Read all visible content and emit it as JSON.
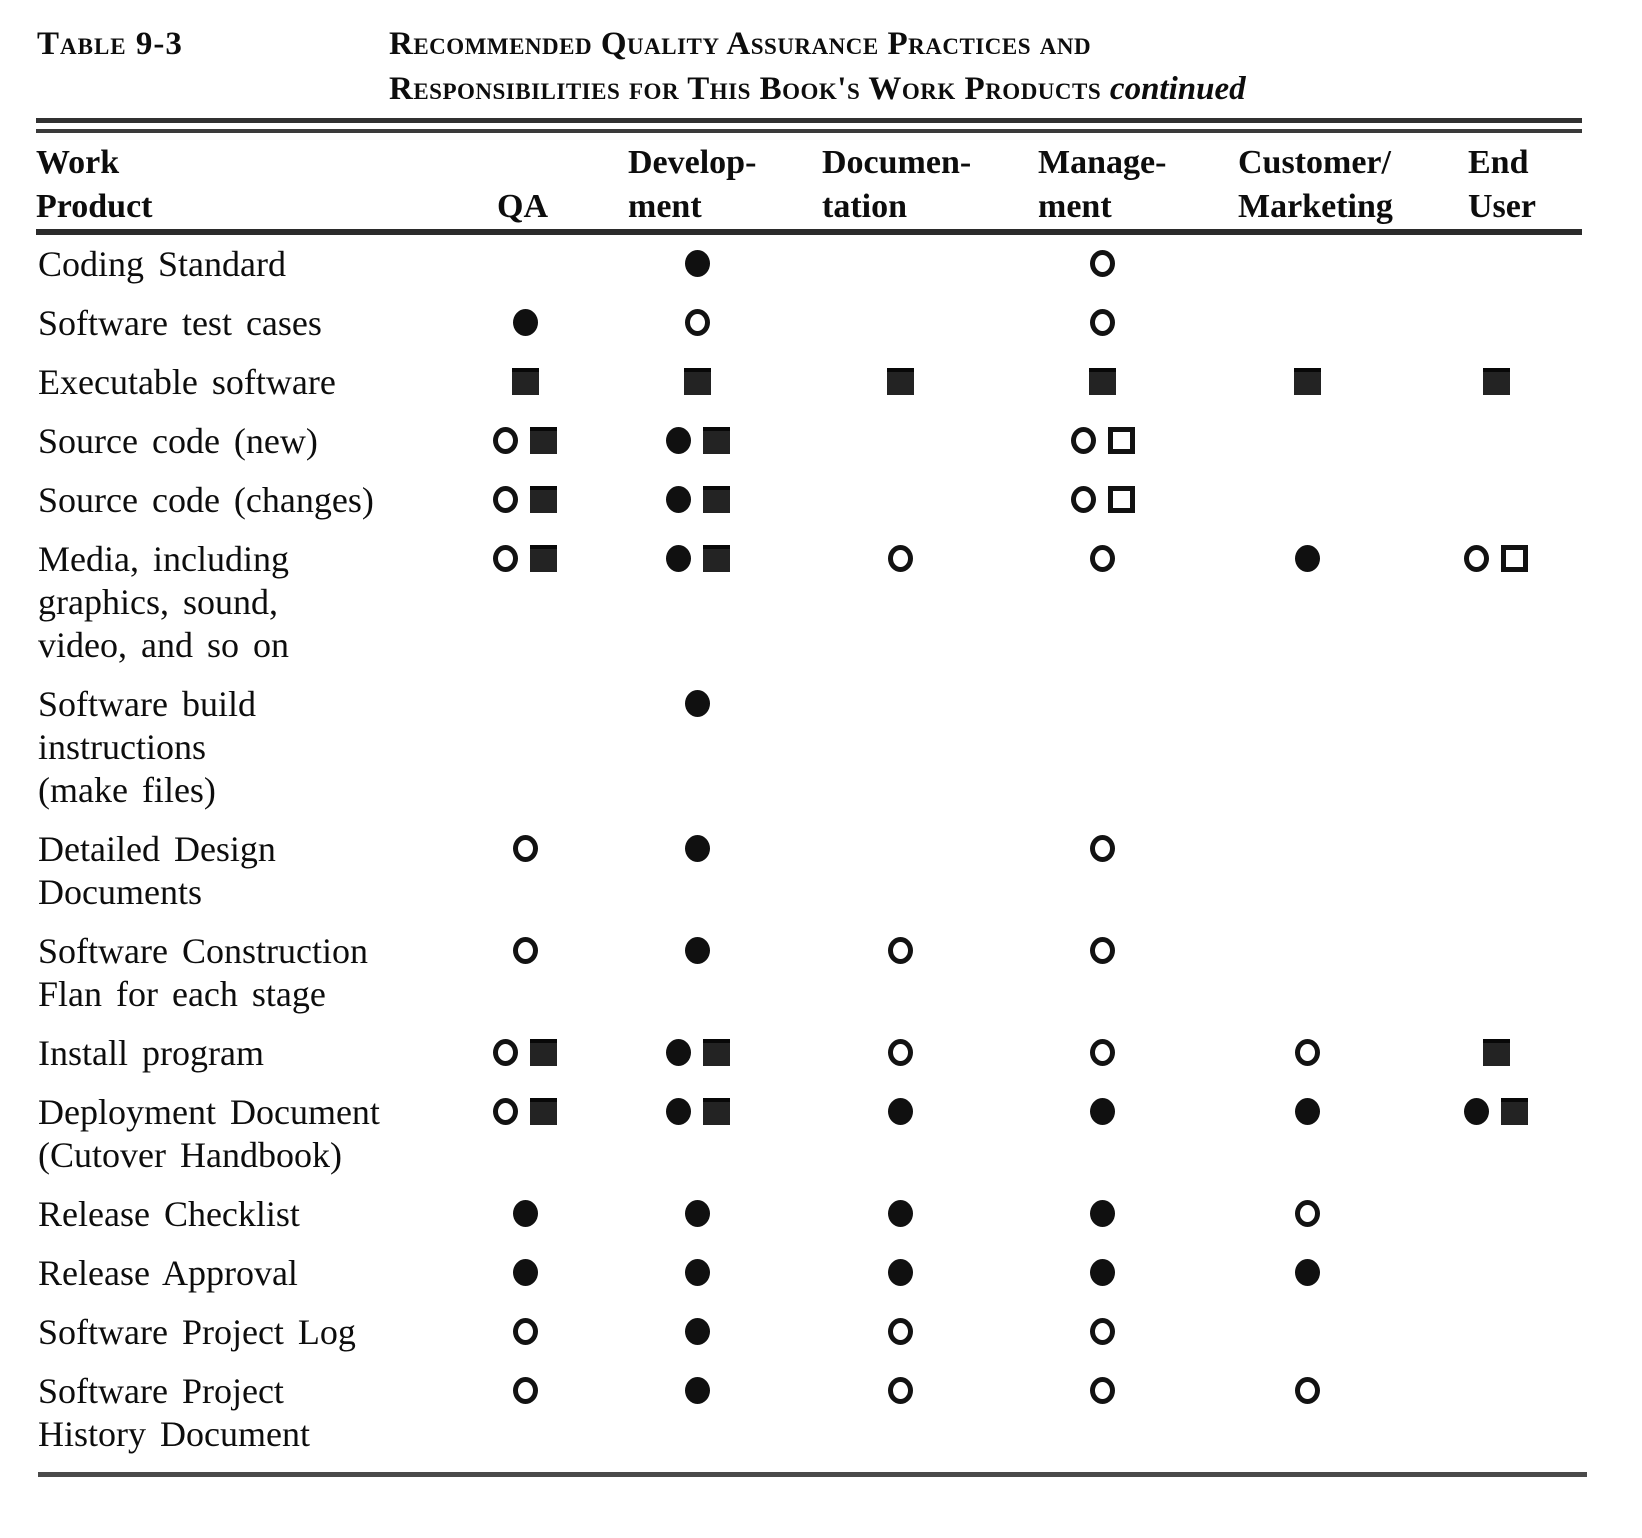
{
  "page": {
    "table_label": "Table 9-3",
    "title_line1": "Recommended Quality Assurance Practices and",
    "title_line2": "Responsibilities for This Book's Work Products",
    "title_continued": "continued"
  },
  "table": {
    "columns": [
      {
        "id": "work_product",
        "line1": "Work",
        "line2": "Product"
      },
      {
        "id": "qa",
        "line1": "",
        "line2": "QA"
      },
      {
        "id": "development",
        "line1": "Develop-",
        "line2": "ment"
      },
      {
        "id": "documentation",
        "line1": "Documen-",
        "line2": "tation"
      },
      {
        "id": "management",
        "line1": "Manage-",
        "line2": "ment"
      },
      {
        "id": "customer_marketing",
        "line1": "Customer/",
        "line2": "Marketing"
      },
      {
        "id": "end_user",
        "line1": "End",
        "line2": "User"
      }
    ],
    "column_order": [
      "qa",
      "development",
      "documentation",
      "management",
      "customer_marketing",
      "end_user"
    ],
    "symbol_classes": {
      "filled_circle": "fc",
      "open_circle": "oc",
      "filled_square": "fs",
      "open_square": "os"
    },
    "symbol_glyphs": {
      "filled_circle": "●",
      "open_circle": "○",
      "filled_square": "■",
      "open_square": "□"
    },
    "rows": [
      {
        "label_lines": [
          "Coding Standard"
        ],
        "cells": {
          "qa": [],
          "development": [
            "filled_circle"
          ],
          "documentation": [],
          "management": [
            "open_circle"
          ],
          "customer_marketing": [],
          "end_user": []
        }
      },
      {
        "label_lines": [
          "Software test cases"
        ],
        "cells": {
          "qa": [
            "filled_circle"
          ],
          "development": [
            "open_circle"
          ],
          "documentation": [],
          "management": [
            "open_circle"
          ],
          "customer_marketing": [],
          "end_user": []
        }
      },
      {
        "label_lines": [
          "Executable software"
        ],
        "cells": {
          "qa": [
            "filled_square"
          ],
          "development": [
            "filled_square"
          ],
          "documentation": [
            "filled_square"
          ],
          "management": [
            "filled_square"
          ],
          "customer_marketing": [
            "filled_square"
          ],
          "end_user": [
            "filled_square"
          ]
        }
      },
      {
        "label_lines": [
          "Source code (new)"
        ],
        "cells": {
          "qa": [
            "open_circle",
            "filled_square"
          ],
          "development": [
            "filled_circle",
            "filled_square"
          ],
          "documentation": [],
          "management": [
            "open_circle",
            "open_square"
          ],
          "customer_marketing": [],
          "end_user": []
        }
      },
      {
        "label_lines": [
          "Source code (changes)"
        ],
        "cells": {
          "qa": [
            "open_circle",
            "filled_square"
          ],
          "development": [
            "filled_circle",
            "filled_square"
          ],
          "documentation": [],
          "management": [
            "open_circle",
            "open_square"
          ],
          "customer_marketing": [],
          "end_user": []
        }
      },
      {
        "label_lines": [
          "Media, including",
          "graphics, sound,",
          "video, and so on"
        ],
        "cells": {
          "qa": [
            "open_circle",
            "filled_square"
          ],
          "development": [
            "filled_circle",
            "filled_square"
          ],
          "documentation": [
            "open_circle"
          ],
          "management": [
            "open_circle"
          ],
          "customer_marketing": [
            "filled_circle"
          ],
          "end_user": [
            "open_circle",
            "open_square"
          ]
        }
      },
      {
        "label_lines": [
          "Software build",
          "instructions",
          "(make files)"
        ],
        "cells": {
          "qa": [],
          "development": [
            "filled_circle"
          ],
          "documentation": [],
          "management": [],
          "customer_marketing": [],
          "end_user": []
        }
      },
      {
        "label_lines": [
          "Detailed Design",
          "Documents"
        ],
        "cells": {
          "qa": [
            "open_circle"
          ],
          "development": [
            "filled_circle"
          ],
          "documentation": [],
          "management": [
            "open_circle"
          ],
          "customer_marketing": [],
          "end_user": []
        }
      },
      {
        "label_lines": [
          "Software Construction",
          "Flan for each stage"
        ],
        "cells": {
          "qa": [
            "open_circle"
          ],
          "development": [
            "filled_circle"
          ],
          "documentation": [
            "open_circle"
          ],
          "management": [
            "open_circle"
          ],
          "customer_marketing": [],
          "end_user": []
        }
      },
      {
        "label_lines": [
          "Install program"
        ],
        "cells": {
          "qa": [
            "open_circle",
            "filled_square"
          ],
          "development": [
            "filled_circle",
            "filled_square"
          ],
          "documentation": [
            "open_circle"
          ],
          "management": [
            "open_circle"
          ],
          "customer_marketing": [
            "open_circle"
          ],
          "end_user": [
            "filled_square"
          ]
        }
      },
      {
        "label_lines": [
          "Deployment Document",
          "(Cutover Handbook)"
        ],
        "cells": {
          "qa": [
            "open_circle",
            "filled_square"
          ],
          "development": [
            "filled_circle",
            "filled_square"
          ],
          "documentation": [
            "filled_circle"
          ],
          "management": [
            "filled_circle"
          ],
          "customer_marketing": [
            "filled_circle"
          ],
          "end_user": [
            "filled_circle",
            "filled_square"
          ]
        }
      },
      {
        "label_lines": [
          "Release Checklist"
        ],
        "cells": {
          "qa": [
            "filled_circle"
          ],
          "development": [
            "filled_circle"
          ],
          "documentation": [
            "filled_circle"
          ],
          "management": [
            "filled_circle"
          ],
          "customer_marketing": [
            "open_circle"
          ],
          "end_user": []
        }
      },
      {
        "label_lines": [
          "Release Approval"
        ],
        "cells": {
          "qa": [
            "filled_circle"
          ],
          "development": [
            "filled_circle"
          ],
          "documentation": [
            "filled_circle"
          ],
          "management": [
            "filled_circle"
          ],
          "customer_marketing": [
            "filled_circle"
          ],
          "end_user": []
        }
      },
      {
        "label_lines": [
          "Software Project Log"
        ],
        "cells": {
          "qa": [
            "open_circle"
          ],
          "development": [
            "filled_circle"
          ],
          "documentation": [
            "open_circle"
          ],
          "management": [
            "open_circle"
          ],
          "customer_marketing": [],
          "end_user": []
        }
      },
      {
        "label_lines": [
          "Software Project",
          "History Document"
        ],
        "cells": {
          "qa": [
            "open_circle"
          ],
          "development": [
            "filled_circle"
          ],
          "documentation": [
            "open_circle"
          ],
          "management": [
            "open_circle"
          ],
          "customer_marketing": [
            "open_circle"
          ],
          "end_user": []
        }
      }
    ]
  }
}
